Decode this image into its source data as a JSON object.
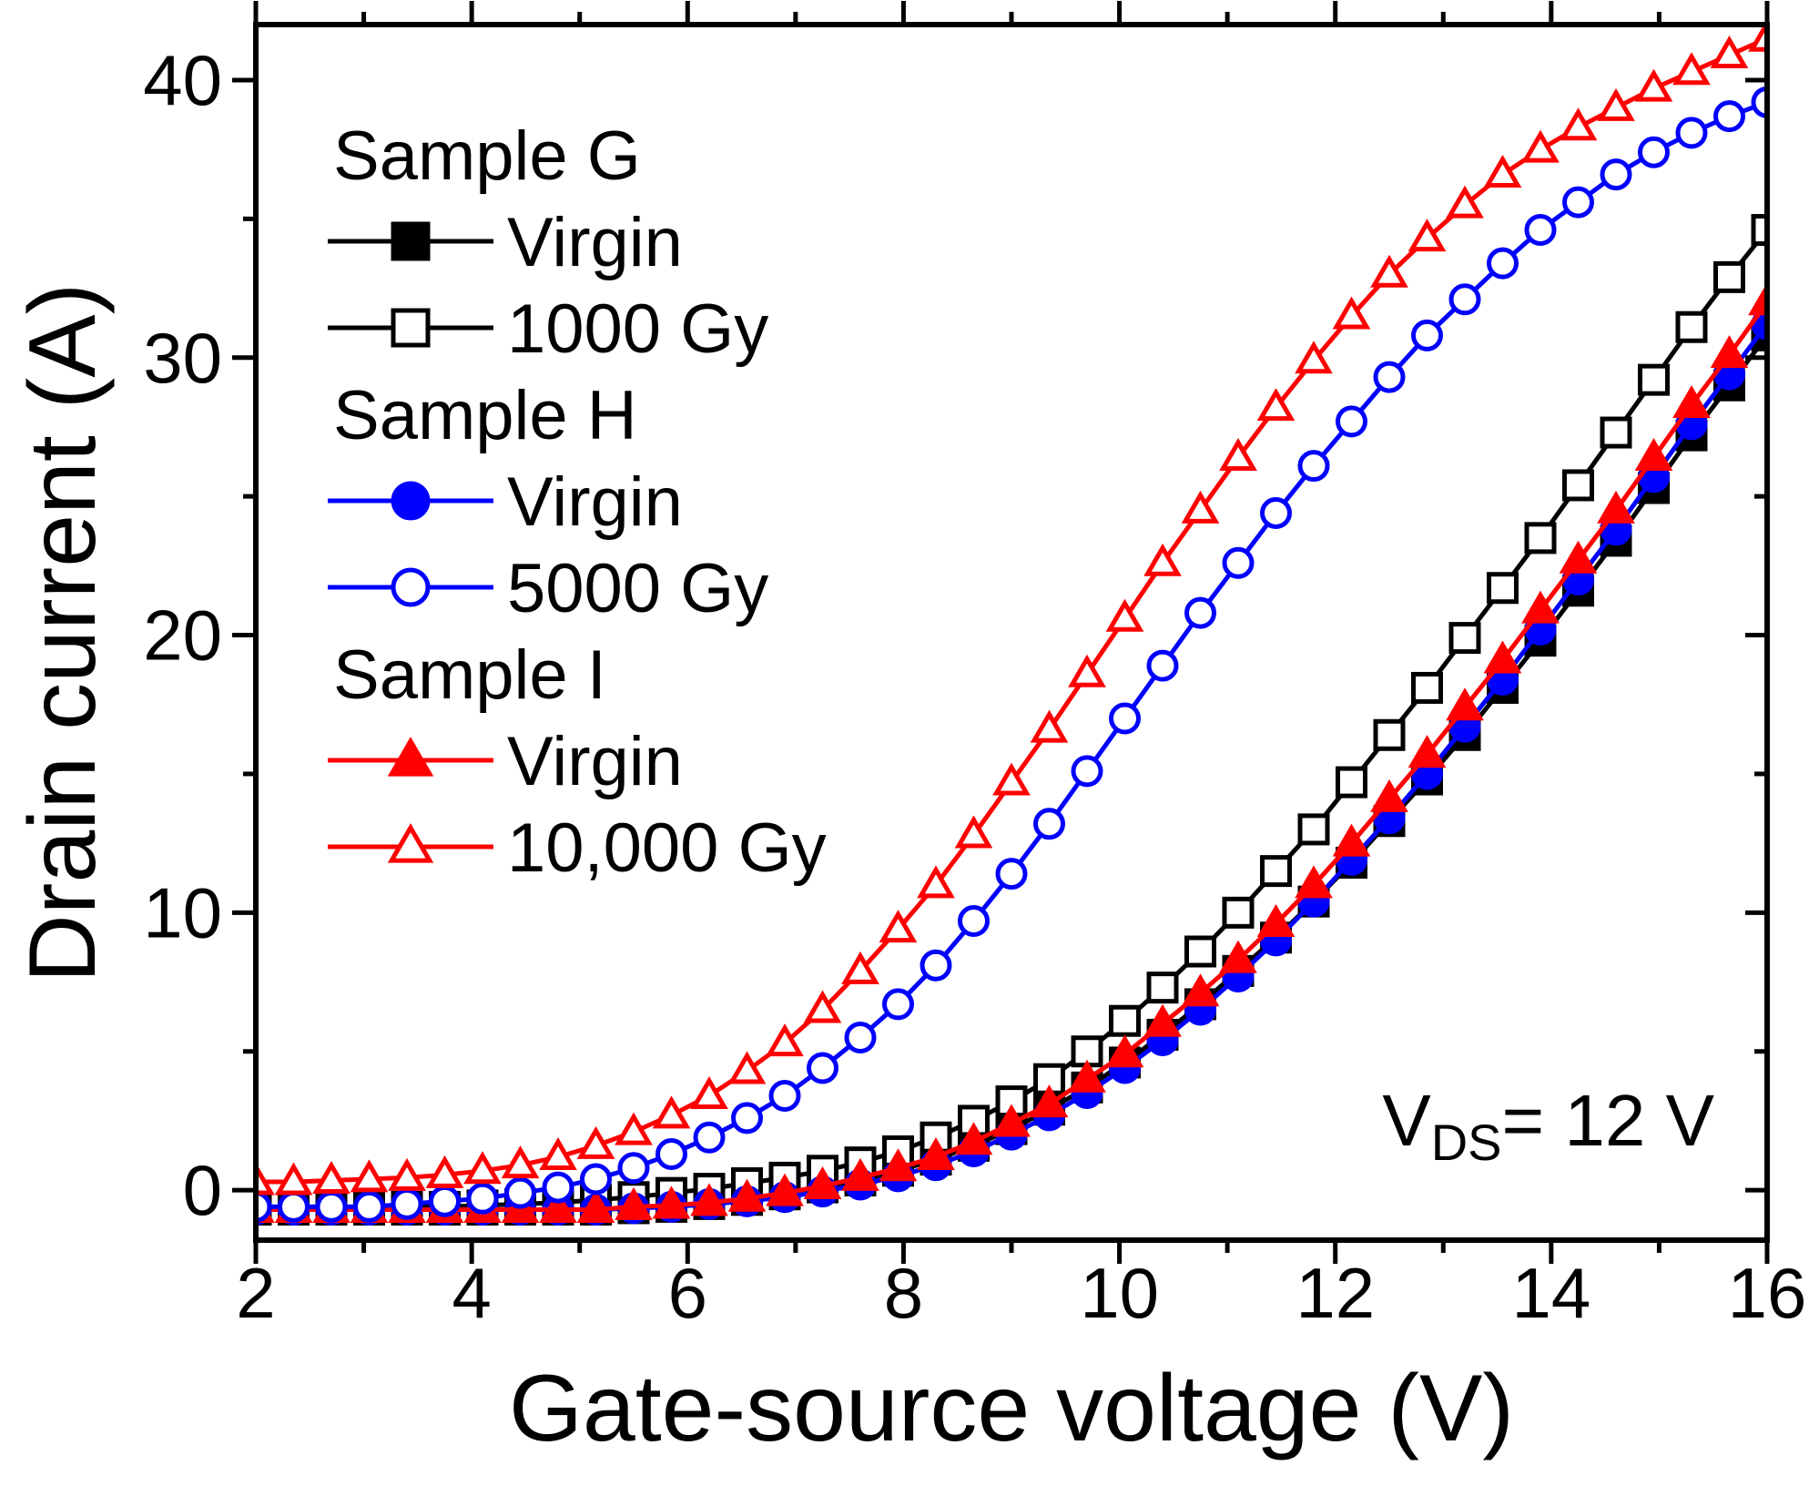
{
  "chart_data": {
    "type": "line",
    "xlabel": "Gate-source voltage (V)",
    "ylabel": "Drain current (A)",
    "xlim": [
      2,
      16
    ],
    "ylim": [
      -1.8,
      42
    ],
    "xticks": [
      2,
      4,
      6,
      8,
      10,
      12,
      14,
      16
    ],
    "yticks": [
      0,
      10,
      20,
      30,
      40
    ],
    "annotation": {
      "main": "V",
      "sub": "DS",
      "rest": "= 12 V"
    },
    "legend": {
      "position": "top-left",
      "groups": [
        {
          "title": "Sample G",
          "entries": [
            "Virgin",
            "1000 Gy"
          ]
        },
        {
          "title": "Sample H",
          "entries": [
            "Virgin",
            "5000 Gy"
          ]
        },
        {
          "title": "Sample I",
          "entries": [
            "Virgin",
            "10,000 Gy"
          ]
        }
      ]
    },
    "x": [
      2.0,
      2.35,
      2.7,
      3.05,
      3.4,
      3.75,
      4.1,
      4.45,
      4.8,
      5.15,
      5.5,
      5.85,
      6.2,
      6.55,
      6.9,
      7.25,
      7.6,
      7.95,
      8.3,
      8.65,
      9.0,
      9.35,
      9.7,
      10.05,
      10.4,
      10.75,
      11.1,
      11.45,
      11.8,
      12.15,
      12.5,
      12.85,
      13.2,
      13.55,
      13.9,
      14.25,
      14.6,
      14.95,
      15.3,
      15.65,
      16.0
    ],
    "series": [
      {
        "name": "Sample G Virgin",
        "color": "#000000",
        "marker": "square",
        "filled": true,
        "values": [
          -0.7,
          -0.7,
          -0.7,
          -0.7,
          -0.7,
          -0.7,
          -0.7,
          -0.7,
          -0.7,
          -0.7,
          -0.65,
          -0.6,
          -0.5,
          -0.35,
          -0.15,
          0.1,
          0.35,
          0.7,
          1.1,
          1.6,
          2.2,
          2.9,
          3.7,
          4.6,
          5.6,
          6.7,
          7.9,
          9.1,
          10.4,
          11.8,
          13.3,
          14.8,
          16.4,
          18.1,
          19.8,
          21.6,
          23.4,
          25.3,
          27.2,
          29.0,
          30.8
        ]
      },
      {
        "name": "Sample G 1000 Gy",
        "color": "#000000",
        "marker": "square",
        "filled": false,
        "values": [
          -0.6,
          -0.6,
          -0.6,
          -0.6,
          -0.6,
          -0.6,
          -0.55,
          -0.5,
          -0.45,
          -0.35,
          -0.25,
          -0.1,
          0.05,
          0.25,
          0.45,
          0.7,
          1.0,
          1.4,
          1.9,
          2.5,
          3.2,
          4.0,
          5.0,
          6.1,
          7.3,
          8.6,
          10.0,
          11.5,
          13.0,
          14.7,
          16.4,
          18.1,
          19.9,
          21.7,
          23.5,
          25.4,
          27.3,
          29.2,
          31.1,
          32.9,
          34.6
        ]
      },
      {
        "name": "Sample H Virgin",
        "color": "#0000ff",
        "marker": "circle",
        "filled": true,
        "values": [
          -0.7,
          -0.7,
          -0.7,
          -0.7,
          -0.7,
          -0.7,
          -0.7,
          -0.7,
          -0.7,
          -0.7,
          -0.65,
          -0.6,
          -0.5,
          -0.4,
          -0.25,
          -0.05,
          0.2,
          0.5,
          0.9,
          1.4,
          2.0,
          2.7,
          3.5,
          4.4,
          5.4,
          6.5,
          7.7,
          9.0,
          10.4,
          11.9,
          13.4,
          15.0,
          16.7,
          18.4,
          20.2,
          22.0,
          23.8,
          25.7,
          27.6,
          29.4,
          31.2
        ]
      },
      {
        "name": "Sample H 5000 Gy",
        "color": "#0000ff",
        "marker": "circle",
        "filled": false,
        "values": [
          -0.6,
          -0.6,
          -0.6,
          -0.6,
          -0.5,
          -0.4,
          -0.3,
          -0.1,
          0.1,
          0.4,
          0.8,
          1.3,
          1.9,
          2.6,
          3.4,
          4.4,
          5.5,
          6.7,
          8.1,
          9.7,
          11.4,
          13.2,
          15.1,
          17.0,
          18.9,
          20.8,
          22.6,
          24.4,
          26.1,
          27.7,
          29.3,
          30.8,
          32.1,
          33.4,
          34.6,
          35.6,
          36.6,
          37.4,
          38.1,
          38.7,
          39.2
        ]
      },
      {
        "name": "Sample I Virgin",
        "color": "#ff0000",
        "marker": "triangle",
        "filled": true,
        "values": [
          -0.7,
          -0.7,
          -0.7,
          -0.7,
          -0.7,
          -0.7,
          -0.7,
          -0.7,
          -0.7,
          -0.7,
          -0.6,
          -0.55,
          -0.45,
          -0.3,
          -0.1,
          0.15,
          0.45,
          0.8,
          1.2,
          1.75,
          2.4,
          3.1,
          4.0,
          4.9,
          6.0,
          7.1,
          8.3,
          9.6,
          11.0,
          12.5,
          14.1,
          15.7,
          17.4,
          19.1,
          20.9,
          22.7,
          24.5,
          26.4,
          28.3,
          30.1,
          32.0
        ]
      },
      {
        "name": "Sample I 10,000 Gy",
        "color": "#ff0000",
        "marker": "triangle",
        "filled": false,
        "values": [
          0.3,
          0.3,
          0.35,
          0.4,
          0.45,
          0.55,
          0.7,
          0.9,
          1.2,
          1.6,
          2.1,
          2.7,
          3.4,
          4.3,
          5.3,
          6.5,
          7.9,
          9.4,
          11.0,
          12.8,
          14.7,
          16.6,
          18.6,
          20.6,
          22.6,
          24.5,
          26.4,
          28.2,
          29.9,
          31.5,
          33.0,
          34.3,
          35.5,
          36.6,
          37.5,
          38.3,
          39.0,
          39.7,
          40.3,
          40.9,
          41.5
        ]
      }
    ]
  }
}
